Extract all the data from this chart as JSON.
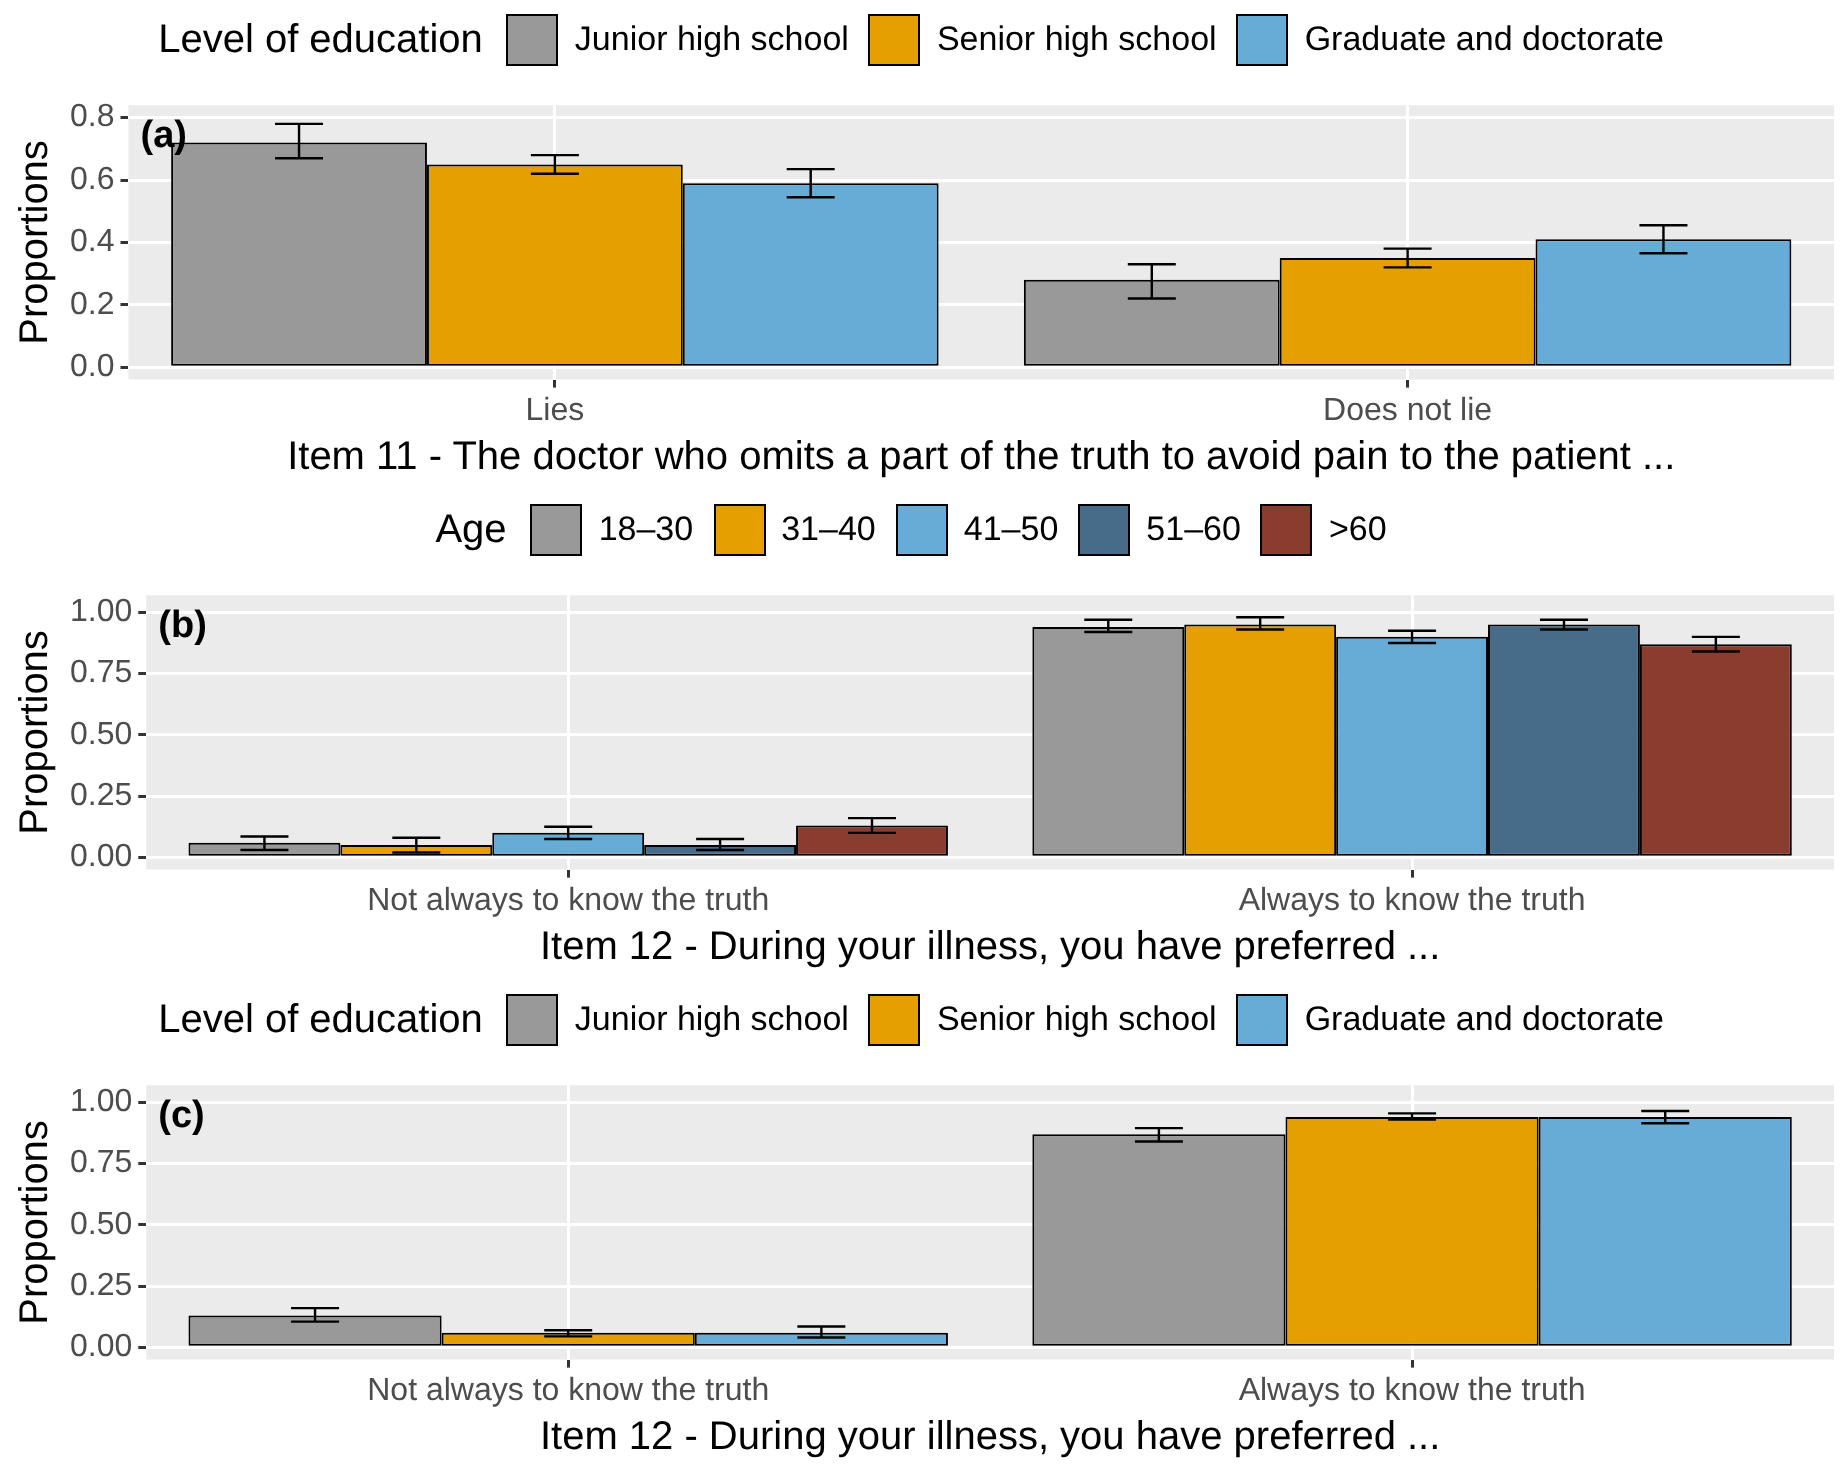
{
  "chart_data": [
    {
      "type": "bar",
      "legend_title": "Level of education",
      "legend": "top",
      "grid": true,
      "ylabel": "Proportions",
      "xlabel": "Item 11 - The doctor who omits a part of the truth to avoid pain to the patient ...",
      "annotations": [
        "(a)"
      ],
      "categories": [
        "Lies",
        "Does not lie"
      ],
      "ylim": [
        -0.04,
        0.84
      ],
      "yticks": [
        {
          "value": 0,
          "label": "0.0"
        },
        0.2,
        0.4,
        0.6,
        0.8
      ],
      "series": [
        {
          "name": "Junior high school",
          "color": "#999999",
          "values": [
            0.72,
            0.28
          ],
          "errors": [
            [
              0.67,
              0.78
            ],
            [
              0.22,
              0.33
            ]
          ]
        },
        {
          "name": "Senior high school",
          "color": "#e69f00",
          "values": [
            0.65,
            0.35
          ],
          "errors": [
            [
              0.62,
              0.68
            ],
            [
              0.32,
              0.38
            ]
          ]
        },
        {
          "name": "Graduate and doctorate",
          "color": "#66acd7",
          "values": [
            0.59,
            0.41
          ],
          "errors": [
            [
              0.545,
              0.635
            ],
            [
              0.365,
              0.455
            ]
          ]
        }
      ]
    },
    {
      "type": "bar",
      "legend_title": "Age",
      "legend": "top",
      "grid": true,
      "ylabel": "Proportions",
      "xlabel": "Item 12 - During your illness, you have preferred ...",
      "annotations": [
        "(b)"
      ],
      "categories": [
        "Not always to know the truth",
        "Always to know the truth"
      ],
      "ylim": [
        -0.05,
        1.07
      ],
      "yticks": [
        {
          "value": 0,
          "label": "0.00"
        },
        0.25,
        {
          "value": 0.5,
          "label": "0.50"
        },
        0.75,
        {
          "value": 1,
          "label": "1.00"
        }
      ],
      "series": [
        {
          "name": "18–30",
          "color": "#999999",
          "values": [
            0.06,
            0.94
          ],
          "errors": [
            [
              0.03,
              0.085
            ],
            [
              0.92,
              0.97
            ]
          ]
        },
        {
          "name": "31–40",
          "color": "#e69f00",
          "values": [
            0.05,
            0.95
          ],
          "errors": [
            [
              0.02,
              0.08
            ],
            [
              0.93,
              0.98
            ]
          ]
        },
        {
          "name": "41–50",
          "color": "#66acd7",
          "values": [
            0.1,
            0.9
          ],
          "errors": [
            [
              0.075,
              0.125
            ],
            [
              0.875,
              0.925
            ]
          ]
        },
        {
          "name": "51–60",
          "color": "#476c89",
          "values": [
            0.05,
            0.95
          ],
          "errors": [
            [
              0.03,
              0.075
            ],
            [
              0.93,
              0.97
            ]
          ]
        },
        {
          "name": ">60",
          "color": "#8a3c2e",
          "values": [
            0.13,
            0.87
          ],
          "errors": [
            [
              0.1,
              0.16
            ],
            [
              0.84,
              0.9
            ]
          ]
        }
      ]
    },
    {
      "type": "bar",
      "legend_title": "Level of education",
      "legend": "top",
      "grid": true,
      "ylabel": "Proportions",
      "xlabel": "Item 12 - During your illness, you have preferred ...",
      "annotations": [
        "(c)"
      ],
      "categories": [
        "Not always to know the truth",
        "Always to know the truth"
      ],
      "ylim": [
        -0.05,
        1.07
      ],
      "yticks": [
        {
          "value": 0,
          "label": "0.00"
        },
        0.25,
        {
          "value": 0.5,
          "label": "0.50"
        },
        0.75,
        {
          "value": 1,
          "label": "1.00"
        }
      ],
      "series": [
        {
          "name": "Junior high school",
          "color": "#999999",
          "values": [
            0.13,
            0.87
          ],
          "errors": [
            [
              0.105,
              0.16
            ],
            [
              0.84,
              0.895
            ]
          ]
        },
        {
          "name": "Senior high school",
          "color": "#e69f00",
          "values": [
            0.06,
            0.94
          ],
          "errors": [
            [
              0.045,
              0.07
            ],
            [
              0.93,
              0.955
            ]
          ]
        },
        {
          "name": "Graduate and doctorate",
          "color": "#66acd7",
          "values": [
            0.06,
            0.94
          ],
          "errors": [
            [
              0.04,
              0.085
            ],
            [
              0.915,
              0.965
            ]
          ]
        }
      ]
    }
  ]
}
